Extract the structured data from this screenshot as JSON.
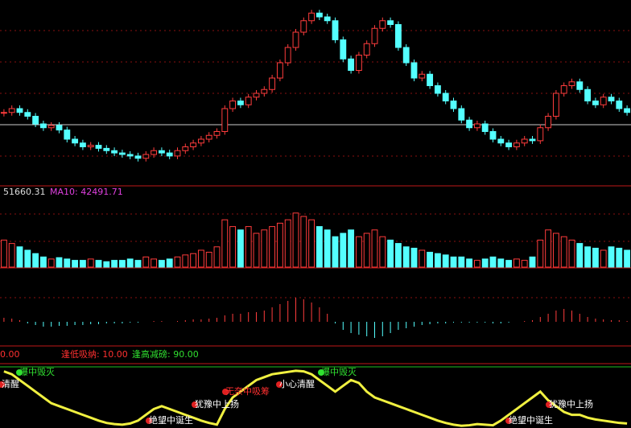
{
  "chart_data": {
    "type": "stock",
    "ylim": [
      0,
      240
    ],
    "close": [
      95,
      100,
      95,
      90,
      80,
      75,
      78,
      72,
      60,
      55,
      50,
      52,
      48,
      45,
      42,
      40,
      38,
      35,
      40,
      45,
      42,
      38,
      45,
      50,
      55,
      60,
      65,
      70,
      100,
      110,
      105,
      115,
      120,
      125,
      140,
      160,
      180,
      200,
      215,
      225,
      220,
      215,
      190,
      165,
      150,
      170,
      185,
      205,
      215,
      210,
      180,
      160,
      140,
      145,
      130,
      120,
      110,
      100,
      85,
      75,
      80,
      70,
      60,
      55,
      50,
      55,
      60,
      58,
      75,
      90,
      120,
      130,
      135,
      125,
      110,
      105,
      115,
      110,
      100,
      95
    ],
    "volume_label": "51660.31",
    "ma10_label": "MA10: 42491.71",
    "volume_lim": [
      0,
      100
    ],
    "volume": [
      40,
      35,
      30,
      25,
      20,
      15,
      12,
      14,
      12,
      10,
      10,
      12,
      10,
      8,
      10,
      10,
      12,
      10,
      15,
      12,
      10,
      12,
      15,
      18,
      20,
      25,
      22,
      30,
      70,
      60,
      55,
      60,
      50,
      55,
      60,
      65,
      70,
      80,
      75,
      70,
      60,
      55,
      45,
      50,
      55,
      45,
      50,
      55,
      45,
      40,
      35,
      30,
      28,
      25,
      22,
      20,
      18,
      15,
      15,
      12,
      10,
      12,
      15,
      12,
      10,
      12,
      10,
      15,
      40,
      55,
      50,
      45,
      40,
      35,
      30,
      28,
      25,
      30,
      28,
      25
    ],
    "macd_lim": [
      -40,
      40
    ],
    "macd": [
      5,
      4,
      2,
      -2,
      -4,
      -6,
      -6,
      -5,
      -5,
      -4,
      -4,
      -3,
      -3,
      -2,
      -2,
      -2,
      -1,
      -1,
      0,
      1,
      1,
      0,
      1,
      2,
      3,
      3,
      4,
      5,
      8,
      10,
      10,
      12,
      12,
      14,
      18,
      22,
      26,
      30,
      28,
      24,
      18,
      10,
      -2,
      -10,
      -14,
      -16,
      -18,
      -20,
      -18,
      -14,
      -10,
      -8,
      -6,
      -4,
      -3,
      -2,
      -2,
      -1,
      -1,
      -1,
      -1,
      -1,
      -2,
      -2,
      -1,
      0,
      1,
      2,
      6,
      10,
      14,
      16,
      14,
      10,
      6,
      4,
      3,
      2,
      2,
      1
    ],
    "indicator_value": "0.00",
    "low_label": "逢低吸纳: 10.00",
    "high_label": "逢高减磅: 90.00",
    "indicator_lim": [
      0,
      100
    ],
    "indicator": [
      95,
      90,
      80,
      70,
      60,
      50,
      40,
      35,
      30,
      25,
      20,
      15,
      10,
      6,
      4,
      3,
      5,
      10,
      20,
      30,
      35,
      30,
      25,
      20,
      15,
      10,
      6,
      3,
      30,
      50,
      60,
      70,
      80,
      85,
      90,
      92,
      94,
      96,
      95,
      90,
      80,
      70,
      60,
      70,
      80,
      75,
      60,
      50,
      45,
      40,
      35,
      30,
      25,
      20,
      15,
      10,
      6,
      3,
      1,
      2,
      4,
      3,
      2,
      10,
      20,
      30,
      40,
      50,
      60,
      45,
      35,
      25,
      20,
      20,
      15,
      12,
      10,
      8,
      6,
      5
    ],
    "signals": [
      "清醒",
      "爆中毁灭",
      "无奈中吸筹",
      "犹豫中上扬",
      "小心清醒",
      "爆中毁灭",
      "犹豫中上扬",
      "绝望中诞生",
      "绝望中诞生"
    ]
  }
}
